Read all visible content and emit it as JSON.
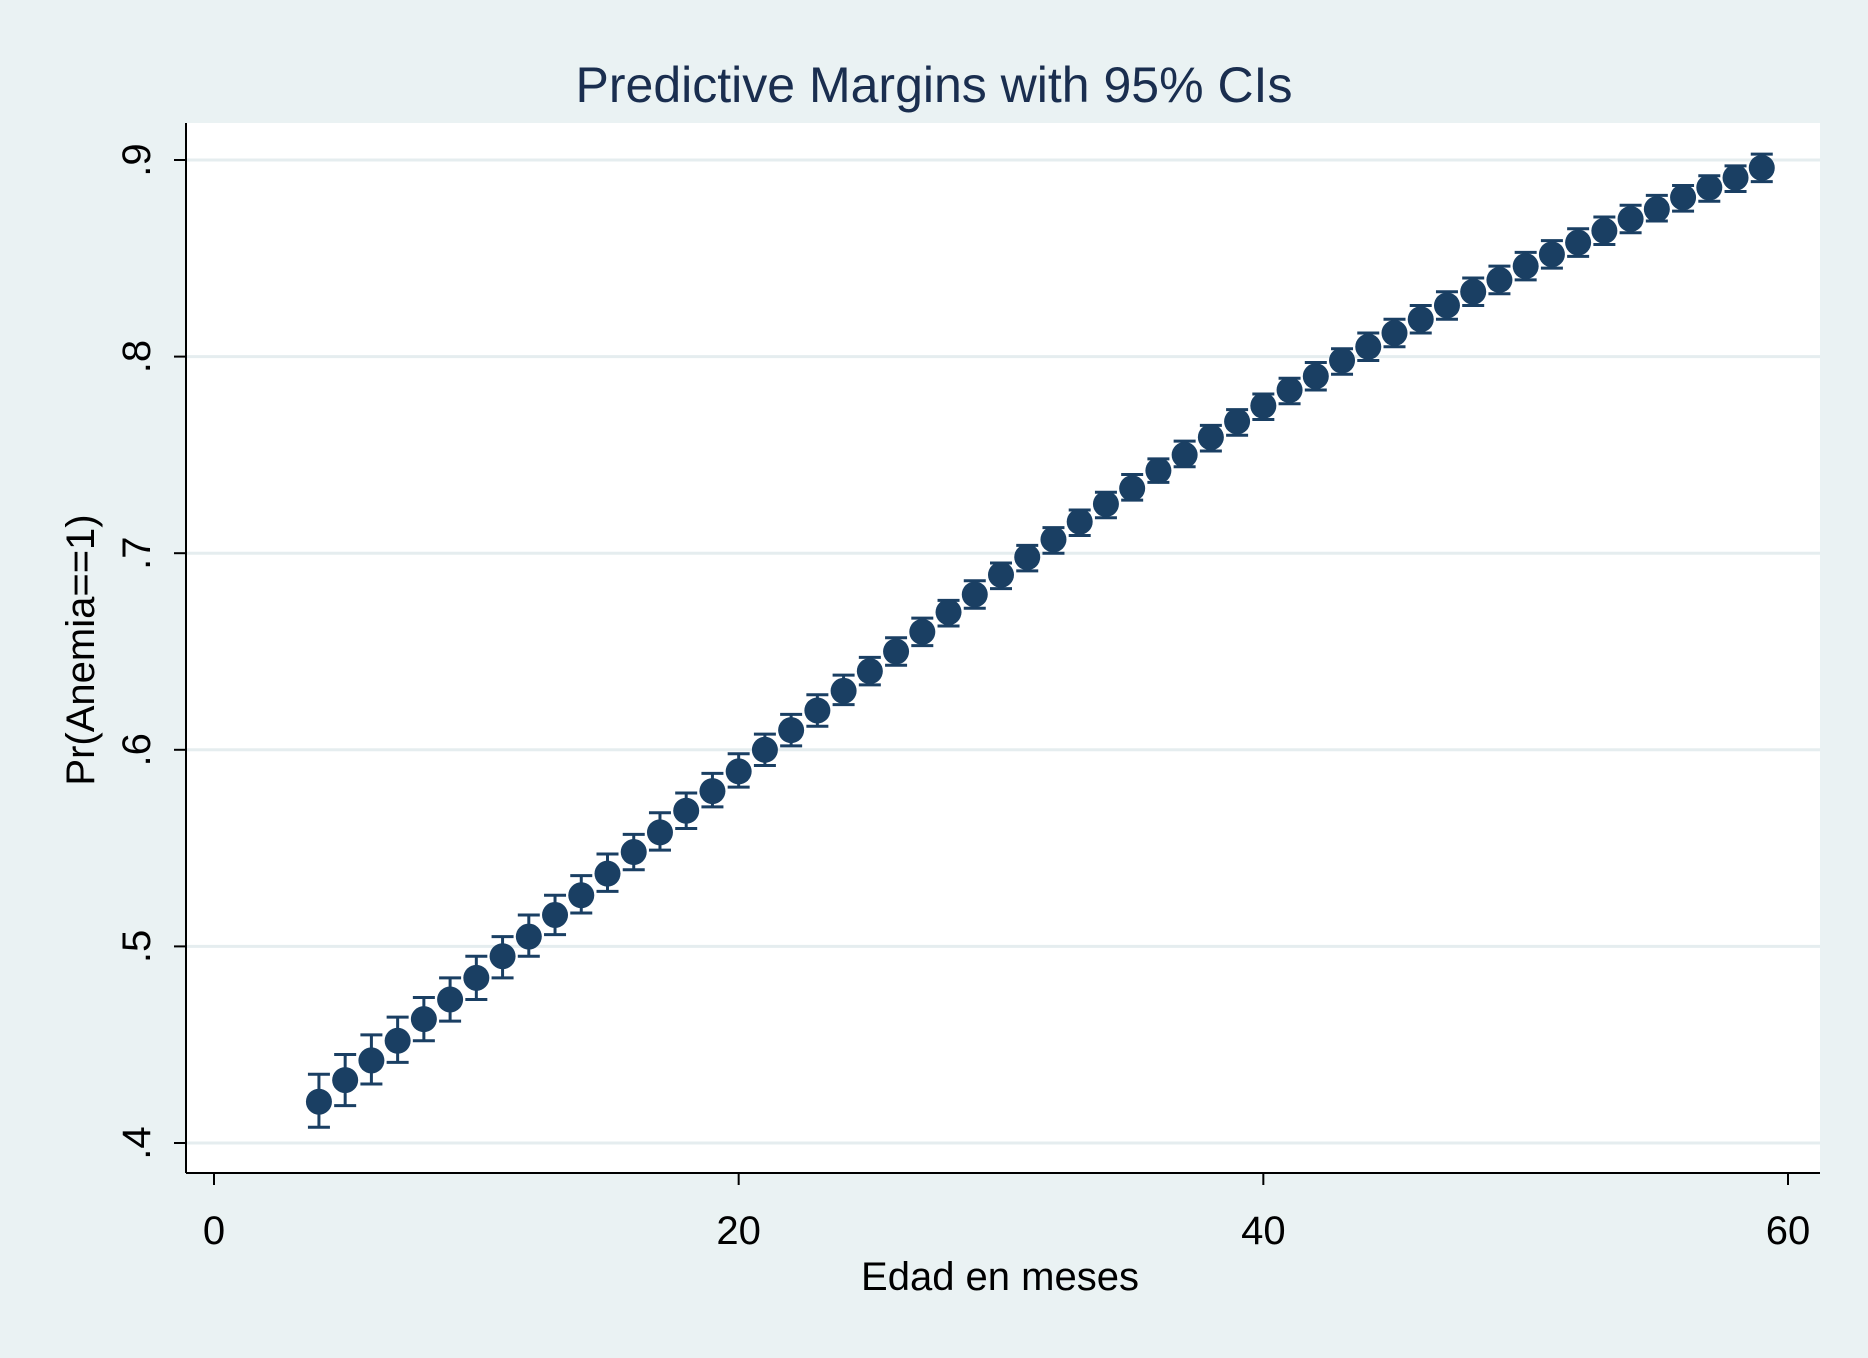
{
  "chart_data": {
    "type": "scatter",
    "title": "Predictive Margins with 95% CIs",
    "xlabel": "Edad en meses",
    "ylabel": "Pr(Anemia==1)",
    "xlim": [
      0,
      60
    ],
    "ylim": [
      0.4,
      0.9
    ],
    "x_ticks": [
      0,
      20,
      40,
      60
    ],
    "x_tick_labels": [
      "0",
      "20",
      "40",
      "60"
    ],
    "y_ticks": [
      0.4,
      0.5,
      0.6,
      0.7,
      0.8,
      0.9
    ],
    "y_tick_labels": [
      ".4",
      ".5",
      ".6",
      ".7",
      ".8",
      ".9"
    ],
    "grid": true,
    "error_bars": "95% CI",
    "series": [
      {
        "marker_color": "#1a3f63",
        "x": [
          4,
          5,
          6,
          7,
          8,
          9,
          10,
          11,
          12,
          13,
          14,
          15,
          16,
          17,
          18,
          19,
          20,
          21,
          22,
          23,
          24,
          25,
          26,
          27,
          28,
          29,
          30,
          31,
          32,
          33,
          34,
          35,
          36,
          37,
          38,
          39,
          40,
          41,
          42,
          43,
          44,
          45,
          46,
          47,
          48,
          49,
          50,
          51,
          52,
          53,
          54,
          55,
          56,
          57,
          58,
          59
        ],
        "y": [
          0.421,
          0.432,
          0.442,
          0.452,
          0.463,
          0.473,
          0.484,
          0.495,
          0.505,
          0.516,
          0.526,
          0.537,
          0.548,
          0.558,
          0.569,
          0.579,
          0.589,
          0.6,
          0.61,
          0.62,
          0.63,
          0.64,
          0.65,
          0.66,
          0.67,
          0.679,
          0.689,
          0.698,
          0.707,
          0.716,
          0.725,
          0.733,
          0.742,
          0.75,
          0.759,
          0.767,
          0.775,
          0.783,
          0.79,
          0.798,
          0.805,
          0.812,
          0.819,
          0.826,
          0.833,
          0.839,
          0.846,
          0.852,
          0.858,
          0.864,
          0.87,
          0.875,
          0.881,
          0.886,
          0.891,
          0.896
        ],
        "ci_lower": [
          0.408,
          0.419,
          0.43,
          0.441,
          0.452,
          0.462,
          0.473,
          0.484,
          0.495,
          0.506,
          0.517,
          0.528,
          0.539,
          0.549,
          0.56,
          0.571,
          0.581,
          0.592,
          0.602,
          0.612,
          0.623,
          0.633,
          0.643,
          0.653,
          0.663,
          0.672,
          0.682,
          0.691,
          0.7,
          0.709,
          0.718,
          0.727,
          0.736,
          0.744,
          0.752,
          0.76,
          0.768,
          0.776,
          0.783,
          0.791,
          0.798,
          0.805,
          0.812,
          0.819,
          0.826,
          0.832,
          0.839,
          0.845,
          0.851,
          0.857,
          0.863,
          0.869,
          0.874,
          0.879,
          0.884,
          0.889
        ],
        "ci_upper": [
          0.435,
          0.445,
          0.455,
          0.464,
          0.474,
          0.484,
          0.495,
          0.505,
          0.516,
          0.526,
          0.536,
          0.547,
          0.557,
          0.568,
          0.578,
          0.588,
          0.598,
          0.608,
          0.618,
          0.628,
          0.638,
          0.647,
          0.657,
          0.667,
          0.676,
          0.686,
          0.695,
          0.704,
          0.713,
          0.722,
          0.731,
          0.74,
          0.748,
          0.757,
          0.765,
          0.773,
          0.781,
          0.789,
          0.797,
          0.804,
          0.812,
          0.819,
          0.826,
          0.833,
          0.84,
          0.846,
          0.853,
          0.859,
          0.865,
          0.871,
          0.877,
          0.882,
          0.887,
          0.892,
          0.897,
          0.903
        ]
      }
    ]
  },
  "colors": {
    "page_background": "#eaf2f3",
    "plot_background": "#ffffff",
    "gridline": "#e5edef",
    "marker": "#1a3f63",
    "title_text": "#1a2e4f"
  }
}
